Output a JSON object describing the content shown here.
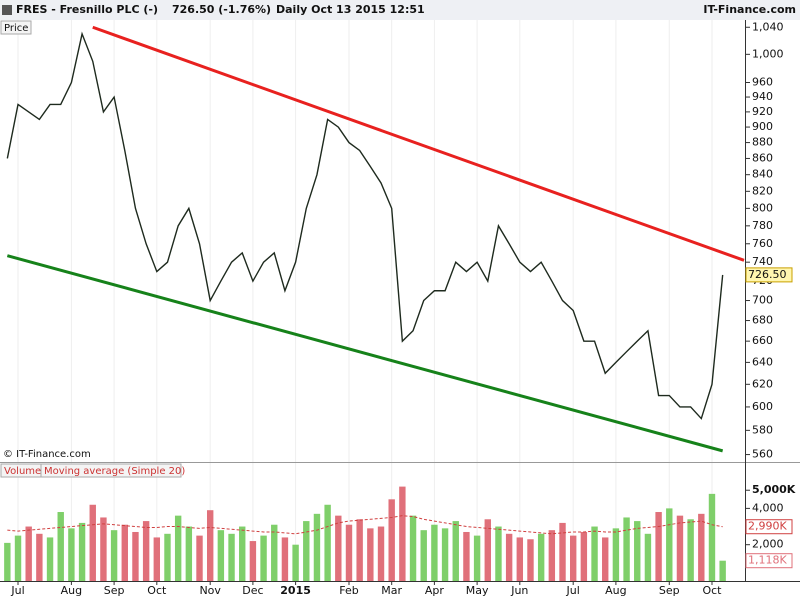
{
  "header": {
    "symbol": "FRES - Fresnillo PLC (-)",
    "quote": "726.50 (-1.76%)",
    "period": "Daily  Oct 13 2015 12:51",
    "brand": "IT-Finance.com"
  },
  "chart_data": [
    {
      "type": "line",
      "name": "Price",
      "copyright": "© IT-Finance.com",
      "color": "#1e2a1e",
      "log_scale": true,
      "categories": [
        null,
        "Jul",
        null,
        null,
        null,
        null,
        "Aug",
        null,
        null,
        null,
        "Sep",
        null,
        null,
        null,
        "Oct",
        null,
        null,
        null,
        null,
        "Nov",
        null,
        null,
        null,
        "Dec",
        null,
        null,
        null,
        "2015",
        null,
        null,
        null,
        null,
        "Feb",
        null,
        null,
        null,
        "Mar",
        null,
        null,
        null,
        "Apr",
        null,
        null,
        null,
        "May",
        null,
        null,
        null,
        "Jun",
        null,
        null,
        null,
        null,
        "Jul",
        null,
        null,
        null,
        "Aug",
        null,
        null,
        null,
        null,
        "Sep",
        null,
        null,
        null,
        "Oct",
        null
      ],
      "values": [
        860,
        930,
        920,
        910,
        930,
        930,
        960,
        1030,
        990,
        920,
        940,
        870,
        800,
        760,
        730,
        740,
        780,
        800,
        760,
        700,
        720,
        740,
        750,
        720,
        740,
        750,
        710,
        740,
        800,
        840,
        910,
        900,
        880,
        870,
        850,
        830,
        800,
        660,
        670,
        700,
        710,
        710,
        740,
        730,
        740,
        720,
        780,
        760,
        740,
        730,
        740,
        720,
        700,
        690,
        660,
        660,
        630,
        640,
        650,
        660,
        670,
        610,
        610,
        600,
        600,
        590,
        620,
        726.5
      ],
      "last_label": "726.50",
      "ylim": [
        554,
        1051
      ],
      "yticks": [
        {
          "value": 1040,
          "label": "1,040"
        },
        {
          "value": 1000,
          "label": "1,000"
        },
        960,
        940,
        920,
        900,
        880,
        860,
        840,
        820,
        800,
        780,
        760,
        740,
        720,
        700,
        680,
        660,
        640,
        620,
        600,
        580,
        560
      ],
      "trendlines": [
        {
          "color": "#e8211f",
          "start": {
            "index": 8,
            "value": 1040
          },
          "end": {
            "index": 69,
            "value": 742
          }
        },
        {
          "color": "#16821a",
          "start": {
            "index": 0,
            "value": 747
          },
          "end": {
            "index": 67,
            "value": 563
          }
        }
      ]
    },
    {
      "type": "bar",
      "name": "Volume",
      "ma_name": "Moving average (Simple 20)",
      "up_color": "#7fcf6a",
      "down_color": "#e0707a",
      "ma_color": "#d04040",
      "values": [
        2100,
        2500,
        3000,
        2600,
        2400,
        3800,
        2900,
        3200,
        4200,
        3500,
        2800,
        3100,
        2700,
        3300,
        2400,
        2600,
        3600,
        3000,
        2500,
        3900,
        2800,
        2600,
        3000,
        2200,
        2500,
        3100,
        2400,
        2000,
        3300,
        3700,
        4200,
        3600,
        3100,
        3400,
        2900,
        3000,
        4500,
        5200,
        3600,
        2800,
        3100,
        2900,
        3300,
        2700,
        2500,
        3400,
        3000,
        2600,
        2400,
        2300,
        2600,
        2800,
        3200,
        2500,
        2700,
        3000,
        2400,
        2900,
        3500,
        3300,
        2600,
        3800,
        4000,
        3600,
        3400,
        3700,
        4800,
        1118
      ],
      "ma_values": [
        2800,
        2750,
        2800,
        2850,
        2900,
        2950,
        3000,
        3050,
        3100,
        3150,
        3100,
        3050,
        3000,
        2950,
        2950,
        3000,
        3000,
        2950,
        2900,
        2950,
        2900,
        2850,
        2800,
        2750,
        2700,
        2700,
        2650,
        2600,
        2700,
        2800,
        3000,
        3200,
        3300,
        3350,
        3400,
        3450,
        3500,
        3600,
        3550,
        3400,
        3300,
        3200,
        3100,
        3000,
        2950,
        2900,
        2850,
        2800,
        2750,
        2700,
        2650,
        2600,
        2650,
        2700,
        2700,
        2750,
        2700,
        2700,
        2800,
        2900,
        2950,
        3000,
        3100,
        3200,
        3250,
        3300,
        3100,
        2990
      ],
      "last_label": "1,118K",
      "ma_last_label": "2,990K",
      "ylim": [
        0,
        6500
      ],
      "yticks": [
        {
          "value": 5000,
          "label": "5,000K"
        },
        {
          "value": 4000,
          "label": "4,000"
        },
        {
          "value": 2000,
          "label": "2,000"
        }
      ]
    }
  ]
}
